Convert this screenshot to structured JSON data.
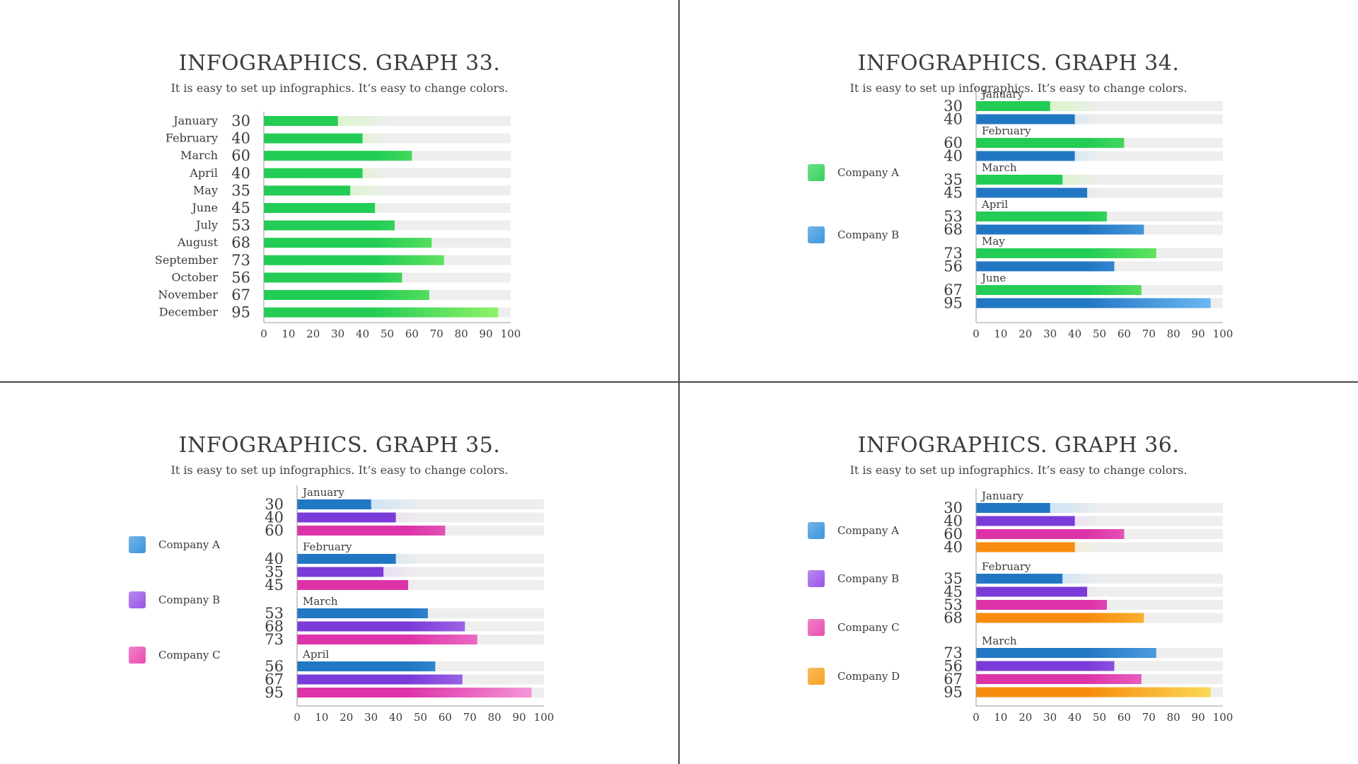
{
  "graphs": [
    {
      "title": "INFOGRAPHICS. GRAPH 33.",
      "subtitle": "It is easy to set up infographics. It’s easy to change colors.",
      "legend": [],
      "chart_data": {
        "type": "bar",
        "orientation": "horizontal",
        "categories": [
          "January",
          "February",
          "March",
          "April",
          "May",
          "June",
          "July",
          "August",
          "September",
          "October",
          "November",
          "December"
        ],
        "series": [
          {
            "values": [
              30,
              40,
              60,
              40,
              35,
              45,
              53,
              68,
              73,
              56,
              67,
              95
            ],
            "color": "#22cc55",
            "color_end": "#9cf76a"
          }
        ],
        "xlim": [
          0,
          100
        ],
        "ticks": [
          "0",
          "10",
          "20",
          "30",
          "40",
          "50",
          "60",
          "70",
          "80",
          "90",
          "100"
        ],
        "grid": false
      }
    },
    {
      "title": "INFOGRAPHICS. GRAPH 34.",
      "subtitle": "It is easy to set up infographics. It’s easy to change colors.",
      "legend": [
        {
          "label": "Company A",
          "color": "#33d15a"
        },
        {
          "label": "Company B",
          "color": "#3a95dd"
        }
      ],
      "chart_data": {
        "type": "bar",
        "orientation": "horizontal",
        "categories": [
          "January",
          "February",
          "March",
          "April",
          "May",
          "June"
        ],
        "series": [
          {
            "name": "Company A",
            "values": [
              30,
              60,
              35,
              53,
              73,
              67
            ],
            "color": "#22cc55",
            "color_end": "#9cf76a"
          },
          {
            "name": "Company B",
            "values": [
              40,
              40,
              45,
              68,
              56,
              95
            ],
            "color": "#2277c4",
            "color_end": "#72bdf5"
          }
        ],
        "xlim": [
          0,
          100
        ],
        "ticks": [
          "0",
          "10",
          "20",
          "30",
          "40",
          "50",
          "60",
          "70",
          "80",
          "90",
          "100"
        ],
        "grid": false
      }
    },
    {
      "title": "INFOGRAPHICS. GRAPH 35.",
      "subtitle": "It is easy to set up infographics. It’s easy to change colors.",
      "legend": [
        {
          "label": "Company A",
          "color": "#3a95dd"
        },
        {
          "label": "Company B",
          "color": "#9a55e8"
        },
        {
          "label": "Company C",
          "color": "#ea4db0"
        }
      ],
      "chart_data": {
        "type": "bar",
        "orientation": "horizontal",
        "categories": [
          "January",
          "February",
          "March",
          "April"
        ],
        "series": [
          {
            "name": "Company A",
            "values": [
              30,
              40,
              53,
              56
            ],
            "color": "#2277c4",
            "color_end": "#72bdf5"
          },
          {
            "name": "Company B",
            "values": [
              40,
              35,
              68,
              67
            ],
            "color": "#7a3bd8",
            "color_end": "#c79cf8"
          },
          {
            "name": "Company C",
            "values": [
              60,
              45,
              73,
              95
            ],
            "color": "#dd33a8",
            "color_end": "#f7a0dc"
          }
        ],
        "xlim": [
          0,
          100
        ],
        "ticks": [
          "0",
          "10",
          "20",
          "30",
          "40",
          "50",
          "60",
          "70",
          "80",
          "90",
          "100"
        ],
        "grid": false
      }
    },
    {
      "title": "INFOGRAPHICS. GRAPH 36.",
      "subtitle": "It is easy to set up infographics. It’s easy to change colors.",
      "legend": [
        {
          "label": "Company A",
          "color": "#3a95dd"
        },
        {
          "label": "Company B",
          "color": "#9a55e8"
        },
        {
          "label": "Company C",
          "color": "#ea4db0"
        },
        {
          "label": "Company D",
          "color": "#f7a01e"
        }
      ],
      "chart_data": {
        "type": "bar",
        "orientation": "horizontal",
        "categories": [
          "January",
          "February",
          "March"
        ],
        "series": [
          {
            "name": "Company A",
            "values": [
              30,
              35,
              73
            ],
            "color": "#2277c4",
            "color_end": "#72bdf5"
          },
          {
            "name": "Company B",
            "values": [
              40,
              45,
              56
            ],
            "color": "#7a3bd8",
            "color_end": "#c79cf8"
          },
          {
            "name": "Company C",
            "values": [
              60,
              53,
              67
            ],
            "color": "#dd33a8",
            "color_end": "#f7a0dc"
          },
          {
            "name": "Company D",
            "values": [
              40,
              68,
              95
            ],
            "color": "#f78c0e",
            "color_end": "#fbe05c"
          }
        ],
        "xlim": [
          0,
          100
        ],
        "ticks": [
          "0",
          "10",
          "20",
          "30",
          "40",
          "50",
          "60",
          "70",
          "80",
          "90",
          "100"
        ],
        "grid": false
      }
    }
  ]
}
